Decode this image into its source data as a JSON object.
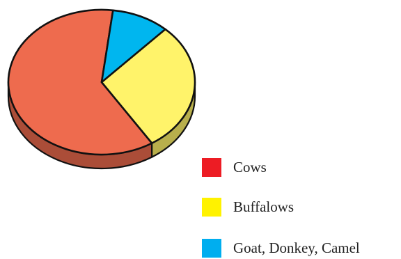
{
  "chart_data": {
    "type": "pie",
    "title": "",
    "slices": [
      {
        "label": "Cows",
        "value": 61,
        "color": "#ee6b4e",
        "legend_color": "#ed1c24"
      },
      {
        "label": "Buffalows",
        "value": 29,
        "color": "#fff36a",
        "legend_color": "#fff200"
      },
      {
        "label": "Goat, Donkey, Camel",
        "value": 10,
        "color": "#00b6ef",
        "legend_color": "#00aeef"
      }
    ],
    "style": "3d",
    "legend_position": "bottom-right"
  }
}
